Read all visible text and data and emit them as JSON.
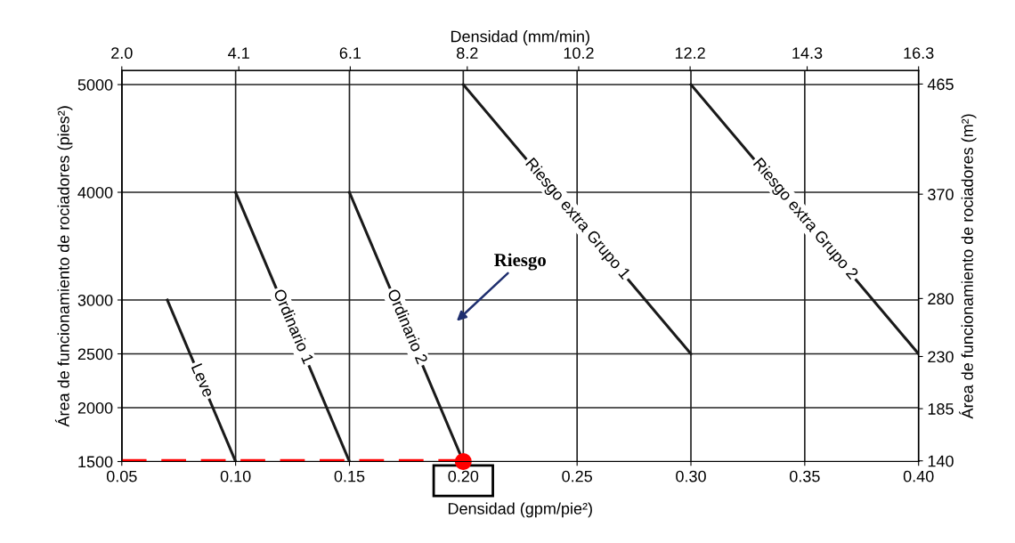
{
  "chart_data": {
    "type": "line",
    "xlabel": "Densidad (gpm/pie²)",
    "ylabel": "Área de funcionamiento de rociadores (pies²)",
    "x2label": "Densidad (mm/min)",
    "y2label": "Área de funcionamiento de rociadores (m²)",
    "xlim": [
      0.05,
      0.4
    ],
    "xticks": [
      {
        "value": 0.05,
        "label": "0.05"
      },
      {
        "value": 0.1,
        "label": "0.10"
      },
      {
        "value": 0.15,
        "label": "0.15"
      },
      {
        "value": 0.2,
        "label": "0.20"
      },
      {
        "value": 0.25,
        "label": "0.25"
      },
      {
        "value": 0.3,
        "label": "0.30"
      },
      {
        "value": 0.35,
        "label": "0.35"
      },
      {
        "value": 0.4,
        "label": "0.40"
      }
    ],
    "ylim": [
      1500,
      5130
    ],
    "yticks": [
      1500,
      2000,
      2500,
      3000,
      4000,
      5000
    ],
    "x2lim": [
      2.0,
      16.3
    ],
    "x2ticks": [
      {
        "value": 2.0,
        "label": "2.0"
      },
      4.1,
      6.1,
      8.2,
      10.2,
      12.2,
      14.3,
      16.3
    ],
    "y2lim": [
      139.4,
      476.6
    ],
    "y2ticks": [
      140,
      185,
      230,
      280,
      370,
      465
    ],
    "grid": true,
    "legend": false,
    "marker": "none",
    "line_style": "solid",
    "series": [
      {
        "name": "Leve",
        "color": "#1a1a1a",
        "x": [
          0.07,
          0.1
        ],
        "values": [
          3000,
          1500
        ]
      },
      {
        "name": "Ordinario 1",
        "color": "#1a1a1a",
        "x": [
          0.1,
          0.15
        ],
        "values": [
          4000,
          1500
        ]
      },
      {
        "name": "Ordinario 2",
        "color": "#1a1a1a",
        "x": [
          0.15,
          0.2
        ],
        "values": [
          4000,
          1500
        ]
      },
      {
        "name": "Riesgo extra Grupo 1",
        "color": "#1a1a1a",
        "x": [
          0.2,
          0.3
        ],
        "values": [
          5000,
          2500
        ]
      },
      {
        "name": "Riesgo extra Grupo 2",
        "color": "#1a1a1a",
        "x": [
          0.3,
          0.4
        ],
        "values": [
          5000,
          2500
        ]
      },
      {
        "color": "#ff0000",
        "x": [
          0.05,
          0.2
        ],
        "values": [
          1500,
          1500
        ],
        "line_style": "dashed"
      },
      {
        "type": "scatter",
        "color": "#ff0000",
        "x": [
          0.2
        ],
        "values": [
          1500
        ],
        "marker": "circle"
      }
    ],
    "annotations": [
      "Riesgo"
    ]
  }
}
